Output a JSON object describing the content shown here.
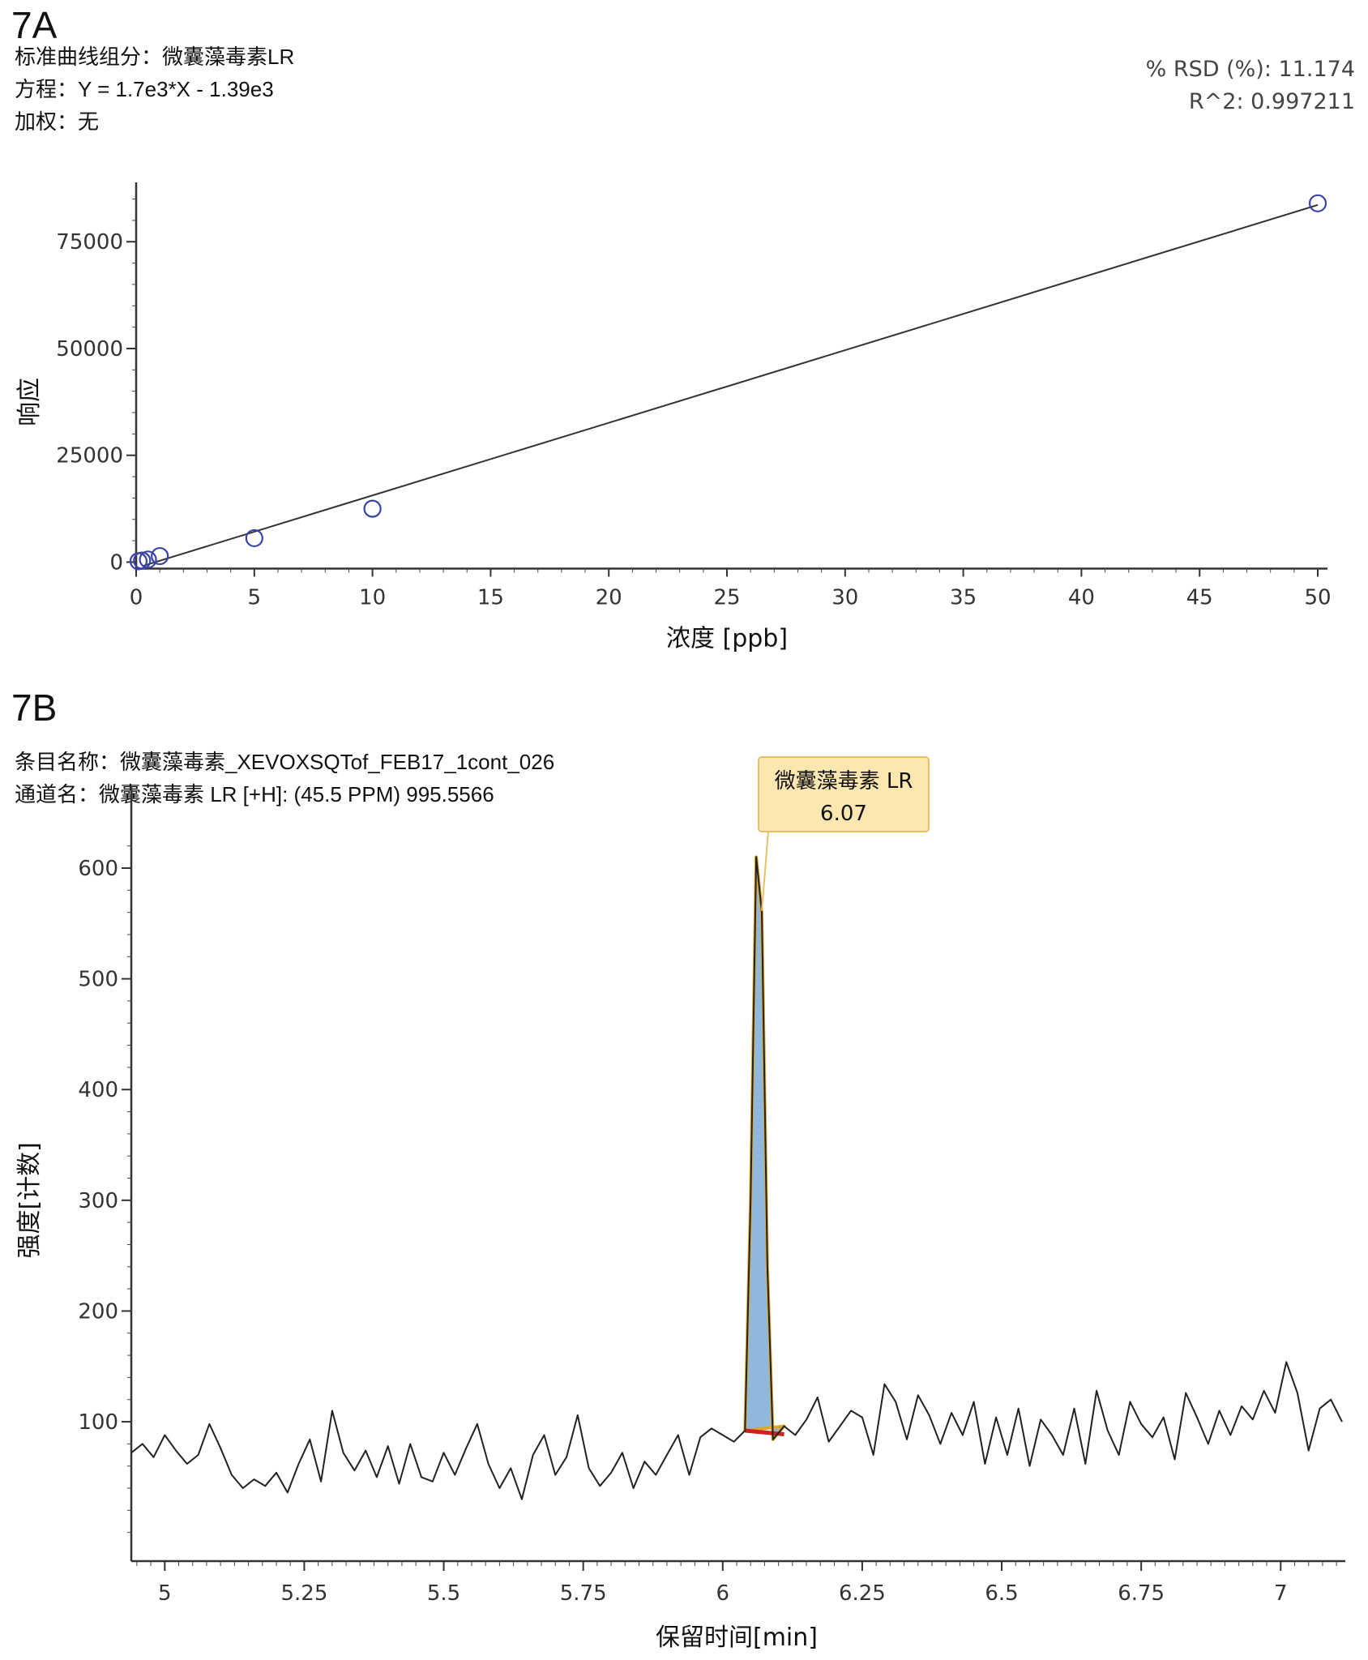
{
  "panelA": {
    "label": "7A",
    "component": "标准曲线组分：微囊藻毒素LR",
    "equation": "方程：Y = 1.7e3*X - 1.39e3",
    "weighting": "加权：无",
    "rsd": "% RSD (%): 11.174",
    "r2": "R^2: 0.997211"
  },
  "panelB": {
    "label": "7B",
    "entry": "条目名称：微囊藻毒素_XEVOXSQTof_FEB17_1cont_026",
    "channel": "通道名：微囊藻毒素 LR [+H]: (45.5 PPM) 995.5566",
    "annotation_name": "微囊藻毒素 LR",
    "annotation_rt": "6.07"
  },
  "chart_data": [
    {
      "type": "scatter",
      "title": "",
      "xlabel": "浓度 [ppb]",
      "ylabel": "响应",
      "xlim": [
        0,
        50
      ],
      "ylim": [
        -2000,
        87000
      ],
      "x_ticks": [
        0,
        5,
        10,
        15,
        20,
        25,
        30,
        35,
        40,
        45,
        50
      ],
      "y_ticks": [
        0,
        25000,
        50000,
        75000
      ],
      "points": [
        {
          "x": 0.1,
          "y": 200
        },
        {
          "x": 0.25,
          "y": 350
        },
        {
          "x": 0.5,
          "y": 600
        },
        {
          "x": 1,
          "y": 1400
        },
        {
          "x": 5,
          "y": 5600
        },
        {
          "x": 10,
          "y": 12500
        },
        {
          "x": 50,
          "y": 84000
        }
      ],
      "fit": {
        "slope": 1700,
        "intercept": -1390
      },
      "colors": {
        "points": "#3a43a6",
        "line": "#333333"
      }
    },
    {
      "type": "line",
      "title": "",
      "xlabel": "保留时间[min]",
      "ylabel": "强度[计数]",
      "xlim": [
        4.94,
        7.11
      ],
      "ylim": [
        -20,
        630
      ],
      "x_ticks": [
        5,
        5.25,
        5.5,
        5.75,
        6,
        6.25,
        6.5,
        6.75,
        7
      ],
      "y_ticks": [
        100,
        200,
        300,
        400,
        500,
        600
      ],
      "series": [
        {
          "x": [
            4.94,
            4.96,
            4.98,
            5.0,
            5.02,
            5.04,
            5.06,
            5.08,
            5.1,
            5.12,
            5.14,
            5.16,
            5.18,
            5.2,
            5.22,
            5.24,
            5.26,
            5.28,
            5.3,
            5.32,
            5.34,
            5.36,
            5.38,
            5.4,
            5.42,
            5.44,
            5.46,
            5.48,
            5.5,
            5.52,
            5.54,
            5.56,
            5.58,
            5.6,
            5.62,
            5.64,
            5.66,
            5.68,
            5.7,
            5.72,
            5.74,
            5.76,
            5.78,
            5.8,
            5.82,
            5.84,
            5.86,
            5.88,
            5.9,
            5.92,
            5.94,
            5.96,
            5.98,
            6.0,
            6.02,
            6.04,
            6.05,
            6.06,
            6.07,
            6.08,
            6.09,
            6.11,
            6.13,
            6.15,
            6.17,
            6.19,
            6.21,
            6.23,
            6.25,
            6.27,
            6.29,
            6.31,
            6.33,
            6.35,
            6.37,
            6.39,
            6.41,
            6.43,
            6.45,
            6.47,
            6.49,
            6.51,
            6.53,
            6.55,
            6.57,
            6.59,
            6.61,
            6.63,
            6.65,
            6.67,
            6.69,
            6.71,
            6.73,
            6.75,
            6.77,
            6.79,
            6.81,
            6.83,
            6.85,
            6.87,
            6.89,
            6.91,
            6.93,
            6.95,
            6.97,
            6.99,
            7.01,
            7.03,
            7.05,
            7.07,
            7.09,
            7.11
          ],
          "y": [
            72,
            80,
            68,
            88,
            74,
            62,
            70,
            98,
            76,
            52,
            40,
            48,
            42,
            54,
            36,
            62,
            84,
            46,
            110,
            72,
            56,
            74,
            50,
            78,
            44,
            80,
            50,
            46,
            72,
            52,
            76,
            98,
            62,
            40,
            58,
            30,
            70,
            88,
            52,
            68,
            106,
            58,
            42,
            54,
            72,
            40,
            64,
            52,
            70,
            88,
            52,
            86,
            94,
            88,
            82,
            92,
            300,
            610,
            560,
            240,
            84,
            96,
            88,
            102,
            122,
            82,
            96,
            110,
            104,
            70,
            134,
            118,
            84,
            124,
            106,
            80,
            108,
            88,
            118,
            62,
            104,
            70,
            112,
            60,
            102,
            88,
            70,
            112,
            62,
            128,
            92,
            70,
            118,
            98,
            86,
            104,
            66,
            126,
            104,
            80,
            110,
            88,
            114,
            102,
            128,
            108,
            154,
            126,
            74,
            112,
            120,
            100
          ]
        }
      ],
      "peak_rt": 6.07,
      "colors": {
        "trace": "#222222",
        "peak_fill": "#8fb8dc",
        "peak_outline": "#e0a72a",
        "baseline": "#cc2222",
        "annotation_bg": "#fde7b1",
        "annotation_border": "#e8c06a"
      }
    }
  ]
}
